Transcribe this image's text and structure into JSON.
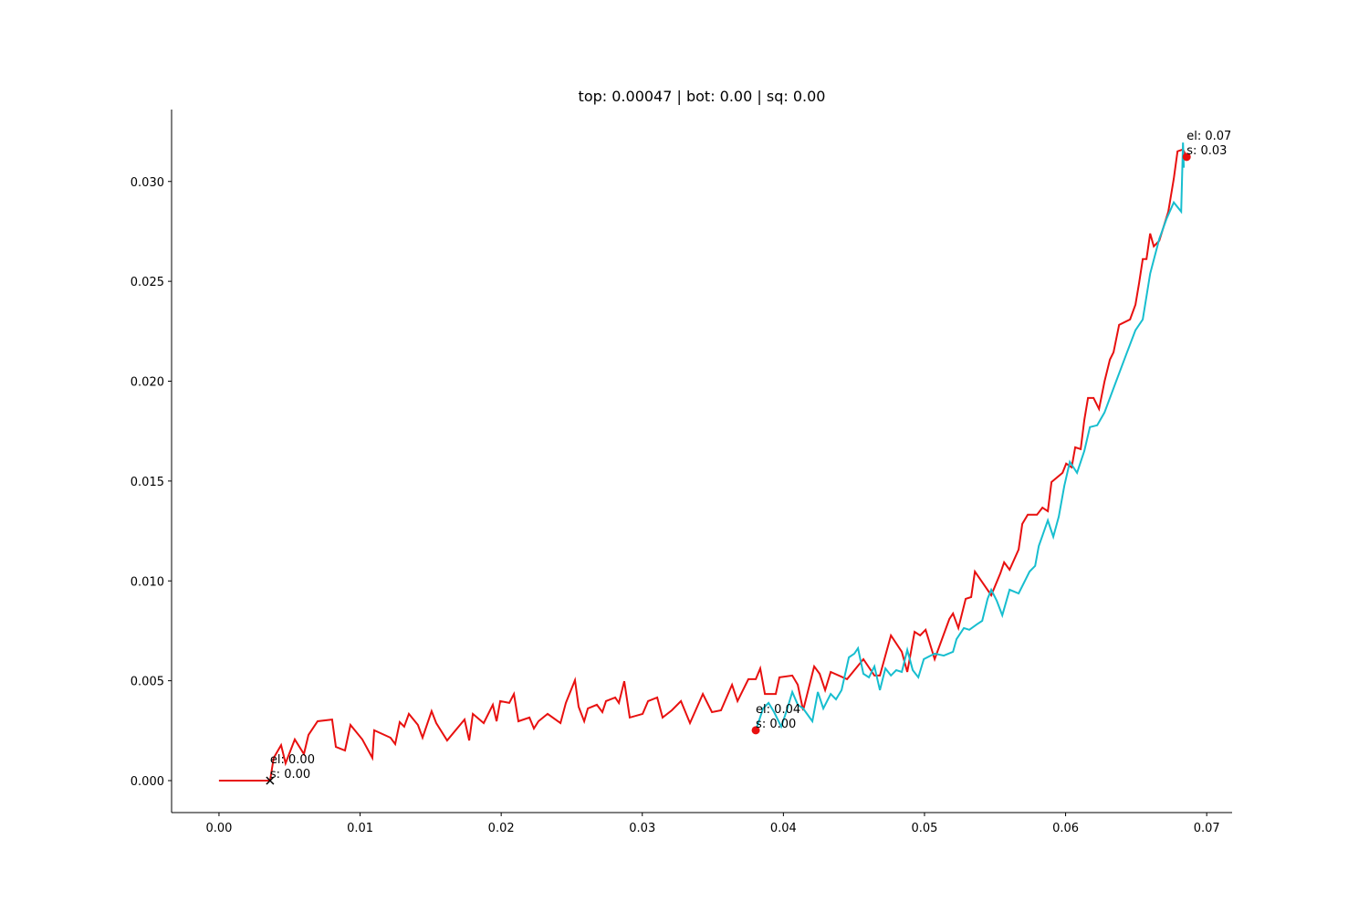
{
  "chart_data": {
    "type": "line",
    "title": "top: 0.00047 | bot: 0.00 | sq: 0.00",
    "xlim": [
      -0.00336,
      0.0718
    ],
    "ylim": [
      -0.0016,
      0.0336
    ],
    "xticks": [
      {
        "value": 0,
        "label": "0.00"
      },
      {
        "value": 0.01,
        "label": "0.01"
      },
      {
        "value": 0.02,
        "label": "0.02"
      },
      {
        "value": 0.03,
        "label": "0.03"
      },
      {
        "value": 0.04,
        "label": "0.04"
      },
      {
        "value": 0.05,
        "label": "0.05"
      },
      {
        "value": 0.06,
        "label": "0.06"
      },
      {
        "value": 0.07,
        "label": "0.07"
      }
    ],
    "yticks": [
      {
        "value": 0,
        "label": "0.000"
      },
      {
        "value": 0.005,
        "label": "0.005"
      },
      {
        "value": 0.01,
        "label": "0.010"
      },
      {
        "value": 0.015,
        "label": "0.015"
      },
      {
        "value": 0.02,
        "label": "0.020"
      },
      {
        "value": 0.025,
        "label": "0.025"
      },
      {
        "value": 0.03,
        "label": "0.030"
      }
    ],
    "grid": false,
    "series": [
      {
        "color": "#e8100f",
        "x": [
          0,
          0.00362,
          0.00388,
          0.0044,
          0.00472,
          0.00537,
          0.00602,
          0.00634,
          0.00699,
          0.00802,
          0.00828,
          0.00893,
          0.00932,
          0.01016,
          0.01087,
          0.011,
          0.01216,
          0.01249,
          0.01281,
          0.01313,
          0.01346,
          0.0141,
          0.01443,
          0.01507,
          0.0154,
          0.01617,
          0.0174,
          0.01773,
          0.01799,
          0.01876,
          0.01941,
          0.01967,
          0.01993,
          0.02057,
          0.0209,
          0.02122,
          0.022,
          0.02232,
          0.02264,
          0.02329,
          0.0242,
          0.02458,
          0.02523,
          0.02549,
          0.02588,
          0.02614,
          0.02678,
          0.02717,
          0.02743,
          0.02808,
          0.02834,
          0.02872,
          0.02911,
          0.03002,
          0.03041,
          0.03106,
          0.03144,
          0.03209,
          0.03274,
          0.03338,
          0.03429,
          0.03494,
          0.03558,
          0.03636,
          0.03675,
          0.03752,
          0.03804,
          0.03836,
          0.03869,
          0.03946,
          0.03972,
          0.04063,
          0.04102,
          0.0414,
          0.04218,
          0.04257,
          0.04296,
          0.04335,
          0.04451,
          0.04567,
          0.04645,
          0.04684,
          0.04762,
          0.04839,
          0.04878,
          0.0493,
          0.04969,
          0.05008,
          0.05072,
          0.05176,
          0.05202,
          0.0524,
          0.05292,
          0.05331,
          0.05357,
          0.05473,
          0.05538,
          0.05564,
          0.05603,
          0.05667,
          0.05693,
          0.05732,
          0.05797,
          0.05836,
          0.05874,
          0.059,
          0.05978,
          0.06004,
          0.06043,
          0.06068,
          0.06107,
          0.06133,
          0.06159,
          0.06198,
          0.06237,
          0.06276,
          0.06314,
          0.0634,
          0.06379,
          0.06457,
          0.06495,
          0.06521,
          0.06547,
          0.06573,
          0.06599,
          0.06625,
          0.06664,
          0.06728,
          0.06767,
          0.06793,
          0.06832,
          0.06858
        ],
        "values": [
          0,
          0,
          0.00114,
          0.00178,
          0.00087,
          0.00206,
          0.00133,
          0.00229,
          0.00297,
          0.00306,
          0.00169,
          0.00151,
          0.00279,
          0.00206,
          0.00114,
          0.00252,
          0.00215,
          0.00183,
          0.00293,
          0.0027,
          0.00334,
          0.00279,
          0.00215,
          0.00348,
          0.00288,
          0.00201,
          0.00306,
          0.00201,
          0.00334,
          0.00288,
          0.0038,
          0.00297,
          0.00398,
          0.00389,
          0.00434,
          0.00297,
          0.00316,
          0.00261,
          0.00297,
          0.00334,
          0.00288,
          0.00389,
          0.00503,
          0.0037,
          0.00297,
          0.00361,
          0.0038,
          0.00343,
          0.00398,
          0.00416,
          0.00389,
          0.00498,
          0.00316,
          0.00334,
          0.00398,
          0.00416,
          0.00316,
          0.00352,
          0.00398,
          0.00288,
          0.00434,
          0.00343,
          0.00352,
          0.0048,
          0.00398,
          0.00508,
          0.00508,
          0.00562,
          0.00434,
          0.00434,
          0.00517,
          0.00526,
          0.0048,
          0.00352,
          0.00572,
          0.00535,
          0.00453,
          0.00544,
          0.00508,
          0.00608,
          0.00526,
          0.00526,
          0.00727,
          0.00645,
          0.00544,
          0.00745,
          0.00727,
          0.00755,
          0.00608,
          0.00809,
          0.00837,
          0.00764,
          0.0091,
          0.00919,
          0.01047,
          0.00928,
          0.01038,
          0.01093,
          0.01056,
          0.01157,
          0.01285,
          0.01331,
          0.01331,
          0.01367,
          0.01349,
          0.01495,
          0.01541,
          0.01587,
          0.01569,
          0.01669,
          0.0166,
          0.01806,
          0.01916,
          0.01916,
          0.01861,
          0.01998,
          0.02108,
          0.02145,
          0.02282,
          0.02309,
          0.02383,
          0.02492,
          0.02611,
          0.02611,
          0.02739,
          0.02675,
          0.02703,
          0.02849,
          0.03014,
          0.03151,
          0.0316,
          0.03123
        ]
      },
      {
        "color": "#17becf",
        "x": [
          0.03804,
          0.03856,
          0.03895,
          0.03934,
          0.03985,
          0.04024,
          0.04063,
          0.04102,
          0.0414,
          0.04205,
          0.04244,
          0.04283,
          0.04335,
          0.04373,
          0.04412,
          0.04464,
          0.04503,
          0.04529,
          0.04567,
          0.04606,
          0.04645,
          0.04684,
          0.04723,
          0.04762,
          0.048,
          0.04839,
          0.04878,
          0.04917,
          0.04956,
          0.04995,
          0.05072,
          0.05137,
          0.05202,
          0.05227,
          0.05279,
          0.05318,
          0.0537,
          0.05409,
          0.05447,
          0.05473,
          0.05512,
          0.05551,
          0.05603,
          0.05667,
          0.05706,
          0.05745,
          0.05784,
          0.0581,
          0.05874,
          0.05913,
          0.05952,
          0.05991,
          0.0603,
          0.06081,
          0.06133,
          0.06172,
          0.06224,
          0.06276,
          0.06353,
          0.06431,
          0.06495,
          0.06547,
          0.06599,
          0.06664,
          0.06715,
          0.06767,
          0.06819,
          0.06832,
          0.06838
        ],
        "values": [
          0.00252,
          0.00361,
          0.00389,
          0.00343,
          0.0027,
          0.00352,
          0.00444,
          0.0038,
          0.00361,
          0.00297,
          0.00444,
          0.00361,
          0.00434,
          0.00407,
          0.00453,
          0.00617,
          0.00636,
          0.00663,
          0.00535,
          0.00517,
          0.00572,
          0.00453,
          0.00562,
          0.00526,
          0.00553,
          0.00544,
          0.00654,
          0.00553,
          0.00517,
          0.00608,
          0.00636,
          0.00626,
          0.00645,
          0.00709,
          0.00764,
          0.00755,
          0.00782,
          0.008,
          0.0091,
          0.00956,
          0.00901,
          0.00828,
          0.00956,
          0.00937,
          0.00992,
          0.01047,
          0.01075,
          0.01175,
          0.01303,
          0.01221,
          0.01322,
          0.01477,
          0.01596,
          0.01541,
          0.01651,
          0.0177,
          0.01779,
          0.01843,
          0.01989,
          0.02136,
          0.02255,
          0.02309,
          0.02538,
          0.02712,
          0.02812,
          0.02895,
          0.02849,
          0.03195,
          0.03069
        ]
      }
    ],
    "annotations": [
      {
        "x": 0.00362,
        "y": 0,
        "marker": "x",
        "color": "#000000",
        "lines": [
          "el: 0.00",
          "s: 0.00"
        ]
      },
      {
        "x": 0.03804,
        "y": 0.00252,
        "marker": "o",
        "color": "#e8100f",
        "lines": [
          "el: 0.04",
          "s: 0.00"
        ]
      },
      {
        "x": 0.06858,
        "y": 0.03123,
        "marker": "o",
        "color": "#e8100f",
        "lines": [
          "el: 0.07",
          "s: 0.03"
        ]
      }
    ]
  }
}
